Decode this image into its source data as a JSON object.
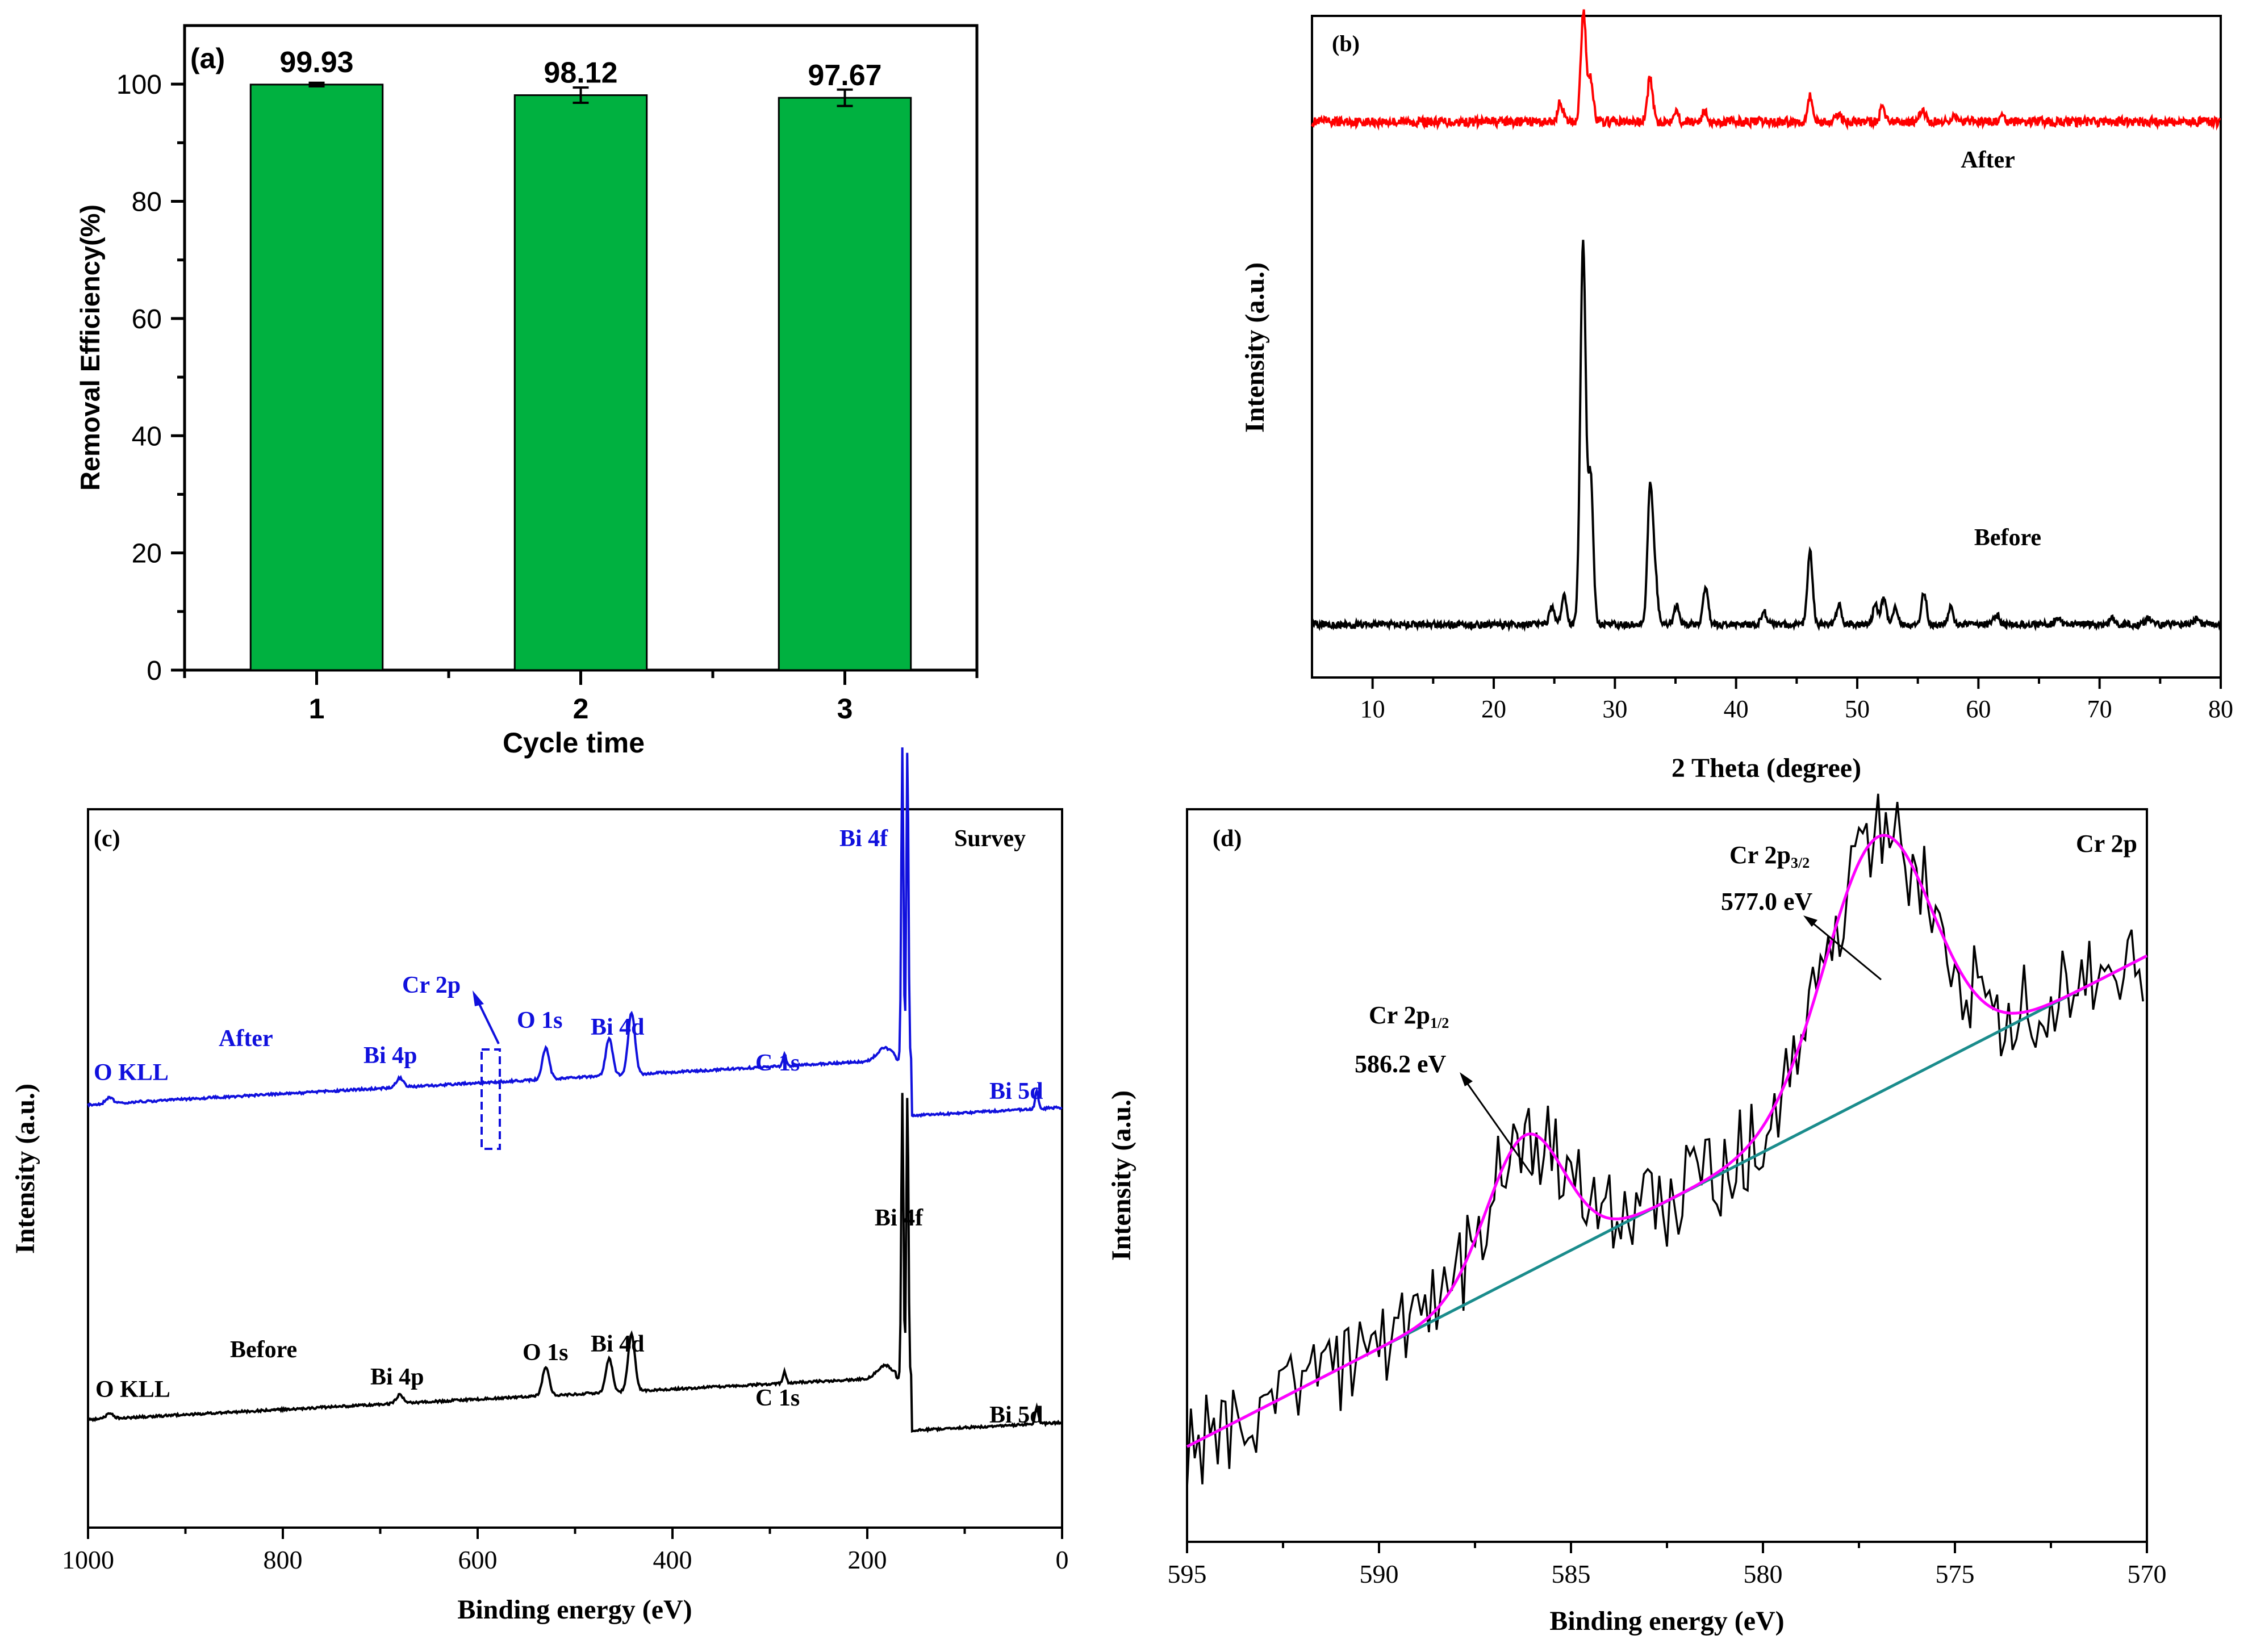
{
  "chart_data": [
    {
      "panel": "(a)",
      "type": "bar",
      "title": "",
      "xlabel": "Cycle time",
      "ylabel": "Removal Efficiency(%)",
      "categories": [
        "1",
        "2",
        "3"
      ],
      "values": [
        99.93,
        98.12,
        97.67
      ],
      "error": [
        0.3,
        1.3,
        1.4
      ],
      "value_labels": [
        "99.93",
        "98.12",
        "97.67"
      ],
      "ylim": [
        0,
        110
      ],
      "yticks": [
        0,
        20,
        40,
        60,
        80,
        100
      ],
      "bar_color": "#00b140"
    },
    {
      "panel": "(b)",
      "type": "line",
      "xlabel": "2 Theta (degree)",
      "ylabel": "Intensity (a.u.)",
      "xlim": [
        5,
        80
      ],
      "xticks": [
        10,
        20,
        30,
        40,
        50,
        60,
        70,
        80
      ],
      "series": [
        {
          "name": "After",
          "color": "#ff0000",
          "baseline": 0.84,
          "scale": 0.3,
          "peaks": [
            [
              25.5,
              0.1
            ],
            [
              27.4,
              0.55
            ],
            [
              28.0,
              0.22
            ],
            [
              32.9,
              0.22
            ],
            [
              35.0,
              0.06
            ],
            [
              37.4,
              0.05
            ],
            [
              46.1,
              0.13
            ],
            [
              48.5,
              0.04
            ],
            [
              52.1,
              0.07
            ],
            [
              55.4,
              0.06
            ],
            [
              57.9,
              0.03
            ],
            [
              62.0,
              0.02
            ]
          ]
        },
        {
          "name": "Before",
          "color": "#000000",
          "baseline": 0.08,
          "scale": 0.5,
          "peaks": [
            [
              24.8,
              0.05
            ],
            [
              25.8,
              0.09
            ],
            [
              27.2,
              0.22
            ],
            [
              27.4,
              1.0
            ],
            [
              28.0,
              0.45
            ],
            [
              32.9,
              0.4
            ],
            [
              33.3,
              0.15
            ],
            [
              35.1,
              0.06
            ],
            [
              37.5,
              0.12
            ],
            [
              42.3,
              0.04
            ],
            [
              46.1,
              0.22
            ],
            [
              48.5,
              0.06
            ],
            [
              51.5,
              0.06
            ],
            [
              52.2,
              0.08
            ],
            [
              53.1,
              0.05
            ],
            [
              55.5,
              0.1
            ],
            [
              57.7,
              0.05
            ],
            [
              61.5,
              0.03
            ],
            [
              66.5,
              0.02
            ],
            [
              71,
              0.02
            ],
            [
              74,
              0.02
            ],
            [
              78,
              0.02
            ]
          ]
        }
      ],
      "annotations": [
        "After",
        "Before"
      ]
    },
    {
      "panel": "(c)",
      "type": "line",
      "xlabel": "Binding energy (eV)",
      "ylabel": "Intensity (a.u.)",
      "xlim": [
        1000,
        0
      ],
      "xticks": [
        1000,
        800,
        600,
        400,
        200,
        0
      ],
      "series": [
        {
          "name": "After",
          "color": "#1010dd",
          "offset": 0.5
        },
        {
          "name": "Before",
          "color": "#000000",
          "offset": 0.0
        }
      ],
      "peaks_ev": [
        [
          978,
          0.02
        ],
        [
          680,
          0.03
        ],
        [
          530,
          0.1
        ],
        [
          465,
          0.12
        ],
        [
          442,
          0.2
        ],
        [
          285,
          0.04
        ],
        [
          160,
          1.0
        ],
        [
          26,
          0.06
        ]
      ],
      "annotations": {
        "after": [
          "O KLL",
          "After",
          "Bi 4p",
          "Cr 2p",
          "O 1s",
          "Bi 4d",
          "C 1s",
          "Bi 4f",
          "Bi 5d",
          "Survey"
        ],
        "before": [
          "O KLL",
          "Before",
          "Bi 4p",
          "O 1s",
          "Bi 4d",
          "C 1s",
          "Bi 4f",
          "Bi 5d"
        ]
      }
    },
    {
      "panel": "(d)",
      "type": "line",
      "xlabel": "Binding energy (eV)",
      "ylabel": "Intensity (a.u.)",
      "xlim": [
        595,
        570
      ],
      "xticks": [
        595,
        590,
        585,
        580,
        575,
        570
      ],
      "series": [
        {
          "name": "raw",
          "color": "#000000"
        },
        {
          "name": "fit",
          "color": "#ff00ff"
        },
        {
          "name": "background",
          "color": "#1a8c8c"
        }
      ],
      "background": [
        [
          595,
          0.13
        ],
        [
          570,
          0.8
        ]
      ],
      "fit_peaks": [
        {
          "center": 586.2,
          "height": 0.27,
          "sigma": 1.0
        },
        {
          "center": 577.0,
          "height": 0.5,
          "sigma": 1.4
        }
      ],
      "annotations": {
        "label": "Cr 2p",
        "peak1": {
          "main": "Cr 2p",
          "sub": "1/2",
          "energy": "586.2 eV"
        },
        "peak2": {
          "main": "Cr 2p",
          "sub": "3/2",
          "energy": "577.0 eV"
        }
      }
    }
  ]
}
